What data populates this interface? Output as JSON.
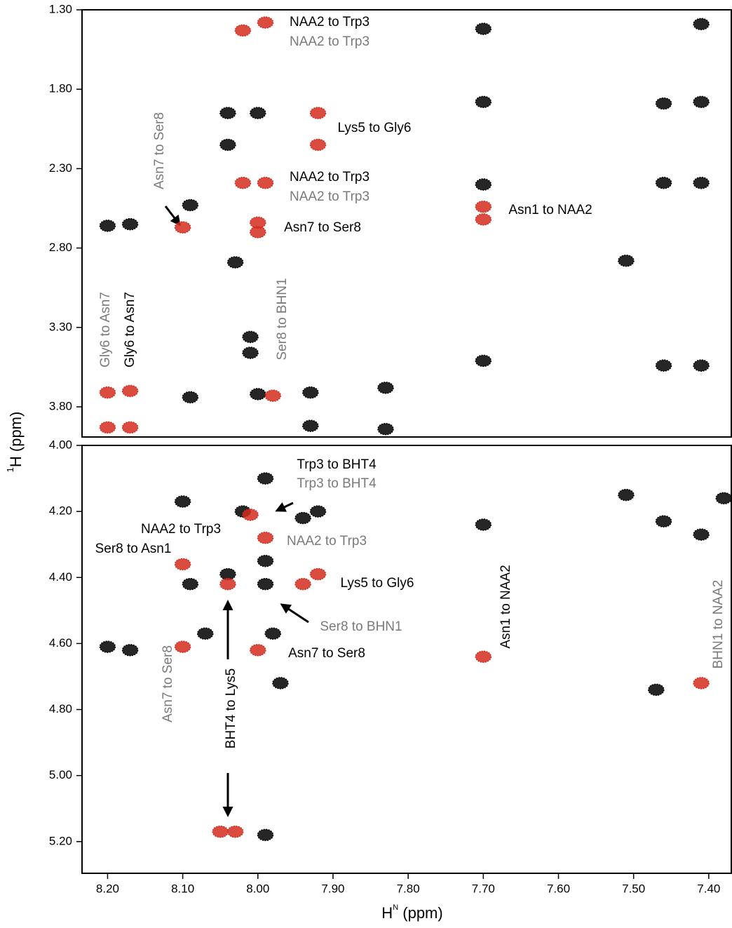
{
  "chart_data": [
    {
      "type": "scatter",
      "y_label": {
        "sup": "1",
        "text": "H (ppm)"
      },
      "ylim": [
        1.3,
        3.99
      ],
      "yticks": [
        {
          "value": 1.3,
          "label": "1.30"
        },
        {
          "value": 1.8,
          "label": "1.80"
        },
        {
          "value": 2.3,
          "label": "2.30"
        },
        {
          "value": 2.8,
          "label": "2.80"
        },
        {
          "value": 3.3,
          "label": "3.30"
        },
        {
          "value": 3.8,
          "label": "3.80"
        }
      ],
      "series": [
        {
          "color": "#000000",
          "x": [
            7.7,
            7.41,
            7.7,
            7.41,
            7.46,
            8.04,
            8.0,
            7.7,
            7.41,
            7.46,
            8.09,
            8.2,
            8.17,
            8.03,
            7.51,
            8.01,
            8.01,
            7.7,
            7.46,
            7.41,
            8.09,
            8.0,
            7.93,
            7.83,
            7.93,
            7.83,
            8.04
          ],
          "y": [
            1.42,
            1.39,
            1.88,
            1.88,
            1.89,
            1.95,
            1.95,
            2.4,
            2.39,
            2.39,
            2.53,
            2.66,
            2.65,
            2.89,
            2.88,
            3.36,
            3.46,
            3.51,
            3.54,
            3.54,
            3.74,
            3.72,
            3.71,
            3.68,
            3.92,
            3.94,
            2.15
          ]
        },
        {
          "color": "#d42b1e",
          "x": [
            7.99,
            8.02,
            7.92,
            7.92,
            8.02,
            7.99,
            8.1,
            8.0,
            8.0,
            7.7,
            7.7,
            8.2,
            8.17,
            8.2,
            8.17,
            7.98
          ],
          "y": [
            1.38,
            1.43,
            1.95,
            2.15,
            2.39,
            2.39,
            2.67,
            2.64,
            2.7,
            2.54,
            2.62,
            3.71,
            3.7,
            3.93,
            3.93,
            3.73
          ]
        }
      ],
      "annotations": [
        {
          "text": "NAA2 to Trp3",
          "color": "#000000"
        },
        {
          "text": "NAA2 to Trp3",
          "color": "#7a7a7a"
        },
        {
          "text": "Lys5 to Gly6",
          "color": "#000000"
        },
        {
          "text": "NAA2 to Trp3",
          "color": "#000000"
        },
        {
          "text": "NAA2 to Trp3",
          "color": "#7a7a7a"
        },
        {
          "text": "Asn7 to Ser8",
          "color": "#000000"
        },
        {
          "text": "Asn1 to NAA2",
          "color": "#000000"
        },
        {
          "text": "Asn7 to Ser8",
          "color": "#7a7a7a"
        },
        {
          "text": "Gly6 to Asn7",
          "color": "#7a7a7a"
        },
        {
          "text": "Gly6 to Asn7",
          "color": "#000000"
        },
        {
          "text": "Ser8 to BHN1",
          "color": "#7a7a7a"
        }
      ]
    },
    {
      "type": "scatter",
      "x_label": {
        "base": "H",
        "sup": "N",
        "rest": " (ppm)"
      },
      "xlim": [
        8.234,
        7.37
      ],
      "xticks": [
        {
          "value": 8.2,
          "label": "8.20"
        },
        {
          "value": 8.1,
          "label": "8.10"
        },
        {
          "value": 8.0,
          "label": "8.00"
        },
        {
          "value": 7.9,
          "label": "7.90"
        },
        {
          "value": 7.8,
          "label": "7.80"
        },
        {
          "value": 7.7,
          "label": "7.70"
        },
        {
          "value": 7.6,
          "label": "7.60"
        },
        {
          "value": 7.5,
          "label": "7.50"
        },
        {
          "value": 7.4,
          "label": "7.40"
        }
      ],
      "ylim": [
        4.0,
        5.296
      ],
      "yticks": [
        {
          "value": 4.0,
          "label": "4.00"
        },
        {
          "value": 4.2,
          "label": "4.20"
        },
        {
          "value": 4.4,
          "label": "4.40"
        },
        {
          "value": 4.6,
          "label": "4.60"
        },
        {
          "value": 4.8,
          "label": "4.80"
        },
        {
          "value": 5.0,
          "label": "5.00"
        },
        {
          "value": 5.2,
          "label": "5.20"
        }
      ],
      "series": [
        {
          "color": "#000000",
          "x": [
            7.99,
            7.51,
            7.38,
            8.1,
            8.02,
            7.92,
            7.94,
            7.7,
            7.46,
            7.41,
            8.09,
            8.04,
            7.99,
            7.99,
            8.2,
            8.17,
            8.07,
            7.98,
            7.97,
            7.47,
            7.99
          ],
          "y": [
            4.1,
            4.15,
            4.16,
            4.17,
            4.2,
            4.2,
            4.22,
            4.24,
            4.23,
            4.27,
            4.42,
            4.39,
            4.35,
            4.42,
            4.61,
            4.62,
            4.57,
            4.57,
            4.72,
            4.74,
            5.18
          ]
        },
        {
          "color": "#d42b1e",
          "x": [
            8.01,
            7.99,
            8.1,
            8.04,
            7.94,
            7.92,
            8.1,
            8.0,
            7.7,
            7.41,
            8.05,
            8.03
          ],
          "y": [
            4.21,
            4.28,
            4.36,
            4.42,
            4.42,
            4.39,
            4.61,
            4.62,
            4.64,
            4.72,
            5.17,
            5.17
          ]
        }
      ],
      "annotations": [
        {
          "text": "Trp3 to BHT4",
          "color": "#000000"
        },
        {
          "text": "Trp3 to BHT4",
          "color": "#7a7a7a"
        },
        {
          "text": "NAA2 to Trp3",
          "color": "#000000"
        },
        {
          "text": "NAA2 to Trp3",
          "color": "#7a7a7a"
        },
        {
          "text": "Ser8 to Asn1",
          "color": "#000000"
        },
        {
          "text": "Lys5 to Gly6",
          "color": "#000000"
        },
        {
          "text": "Ser8 to BHN1",
          "color": "#7a7a7a"
        },
        {
          "text": "Asn7 to Ser8",
          "color": "#000000"
        },
        {
          "text": "Asn1 to NAA2",
          "color": "#000000"
        },
        {
          "text": "BHN1 to NAA2",
          "color": "#7a7a7a"
        },
        {
          "text": "Asn7 to Ser8",
          "color": "#7a7a7a"
        },
        {
          "text": "BHT4 to Lys5",
          "color": "#000000"
        }
      ]
    }
  ]
}
